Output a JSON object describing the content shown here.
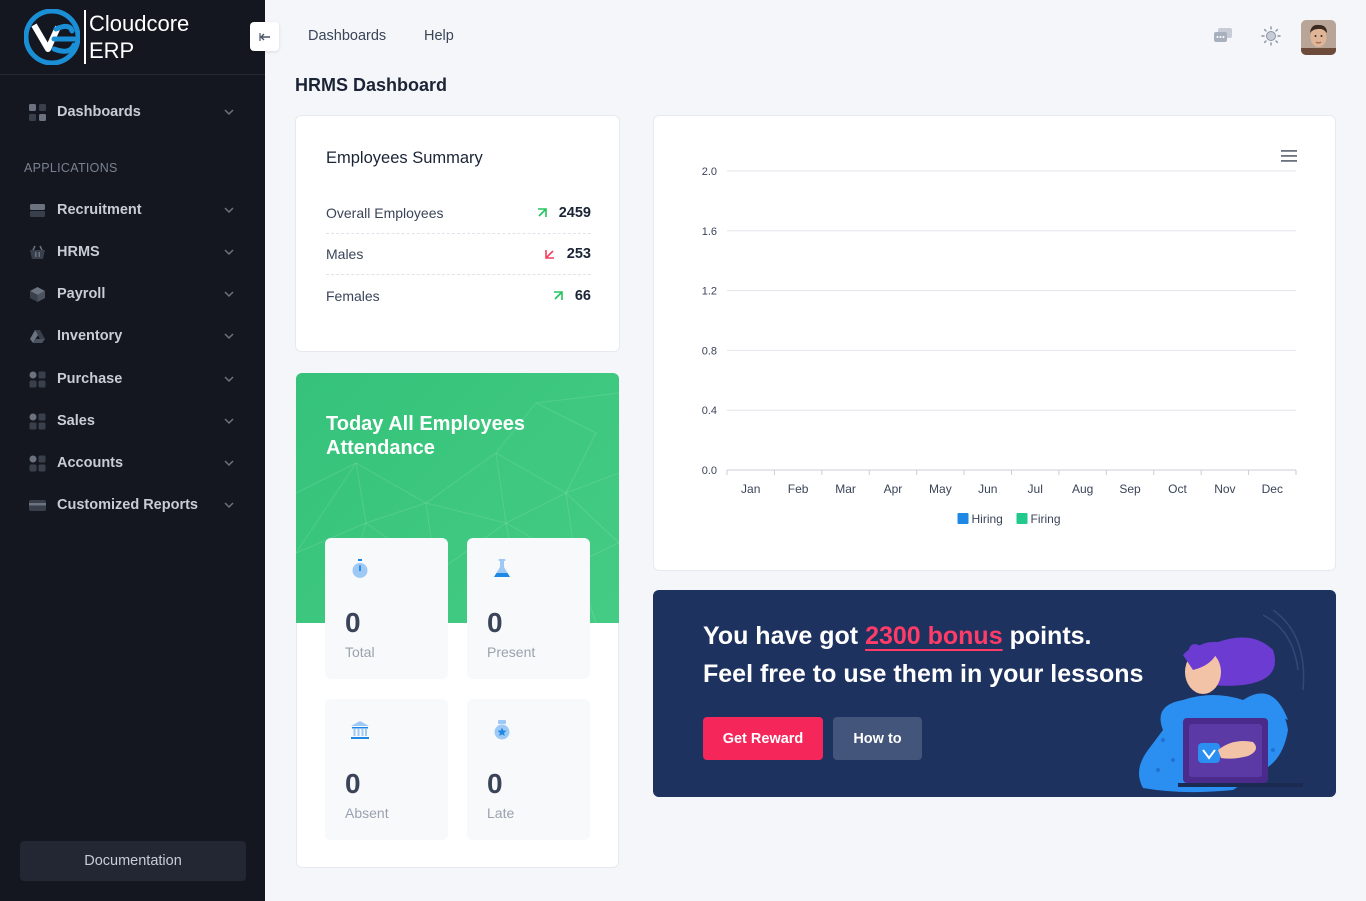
{
  "brand": {
    "line1": "Cloudcore",
    "line2": "ERP"
  },
  "sidebar": {
    "items": [
      {
        "label": "Dashboards",
        "icon": "grid-icon"
      },
      {
        "label": "Recruitment",
        "icon": "briefcase-icon"
      },
      {
        "label": "HRMS",
        "icon": "basket-icon"
      },
      {
        "label": "Payroll",
        "icon": "cube-icon"
      },
      {
        "label": "Inventory",
        "icon": "drive-icon"
      },
      {
        "label": "Purchase",
        "icon": "apps-icon"
      },
      {
        "label": "Sales",
        "icon": "apps-icon"
      },
      {
        "label": "Accounts",
        "icon": "apps-icon"
      },
      {
        "label": "Customized Reports",
        "icon": "card-icon"
      }
    ],
    "section_label": "APPLICATIONS",
    "documentation": "Documentation"
  },
  "header": {
    "links": [
      "Dashboards",
      "Help"
    ]
  },
  "page_title": "HRMS Dashboard",
  "summary": {
    "title": "Employees Summary",
    "rows": [
      {
        "label": "Overall Employees",
        "value": "2459",
        "trend": "up"
      },
      {
        "label": "Males",
        "value": "253",
        "trend": "down"
      },
      {
        "label": "Females",
        "value": "66",
        "trend": "up"
      }
    ]
  },
  "attendance": {
    "title": "Today All Employees Attendance",
    "tiles": [
      {
        "value": "0",
        "label": "Total",
        "icon": "stopwatch-icon"
      },
      {
        "value": "0",
        "label": "Present",
        "icon": "flask-icon"
      },
      {
        "value": "0",
        "label": "Absent",
        "icon": "bank-icon"
      },
      {
        "value": "0",
        "label": "Late",
        "icon": "badge-icon"
      }
    ]
  },
  "chart_data": {
    "type": "bar",
    "categories": [
      "Jan",
      "Feb",
      "Mar",
      "Apr",
      "May",
      "Jun",
      "Jul",
      "Aug",
      "Sep",
      "Oct",
      "Nov",
      "Dec"
    ],
    "series": [
      {
        "name": "Hiring",
        "color": "#1e88e5",
        "values": [
          0,
          0,
          0,
          0,
          0,
          0,
          0,
          0,
          0,
          0,
          0,
          0
        ]
      },
      {
        "name": "Firing",
        "color": "#22c98c",
        "values": [
          0,
          0,
          0,
          0,
          0,
          0,
          0,
          0,
          0,
          0,
          0,
          0
        ]
      }
    ],
    "yticks": [
      "0.0",
      "0.4",
      "0.8",
      "1.2",
      "1.6",
      "2.0"
    ],
    "ylim": [
      0,
      2
    ],
    "grid": true,
    "legend": "bottom-center"
  },
  "bonus": {
    "prefix": "You have got ",
    "highlight": "2300 bonus",
    "suffix": " points.",
    "line2": "Feel free to use them in your lessons",
    "reward_label": "Get Reward",
    "howto_label": "How to"
  }
}
